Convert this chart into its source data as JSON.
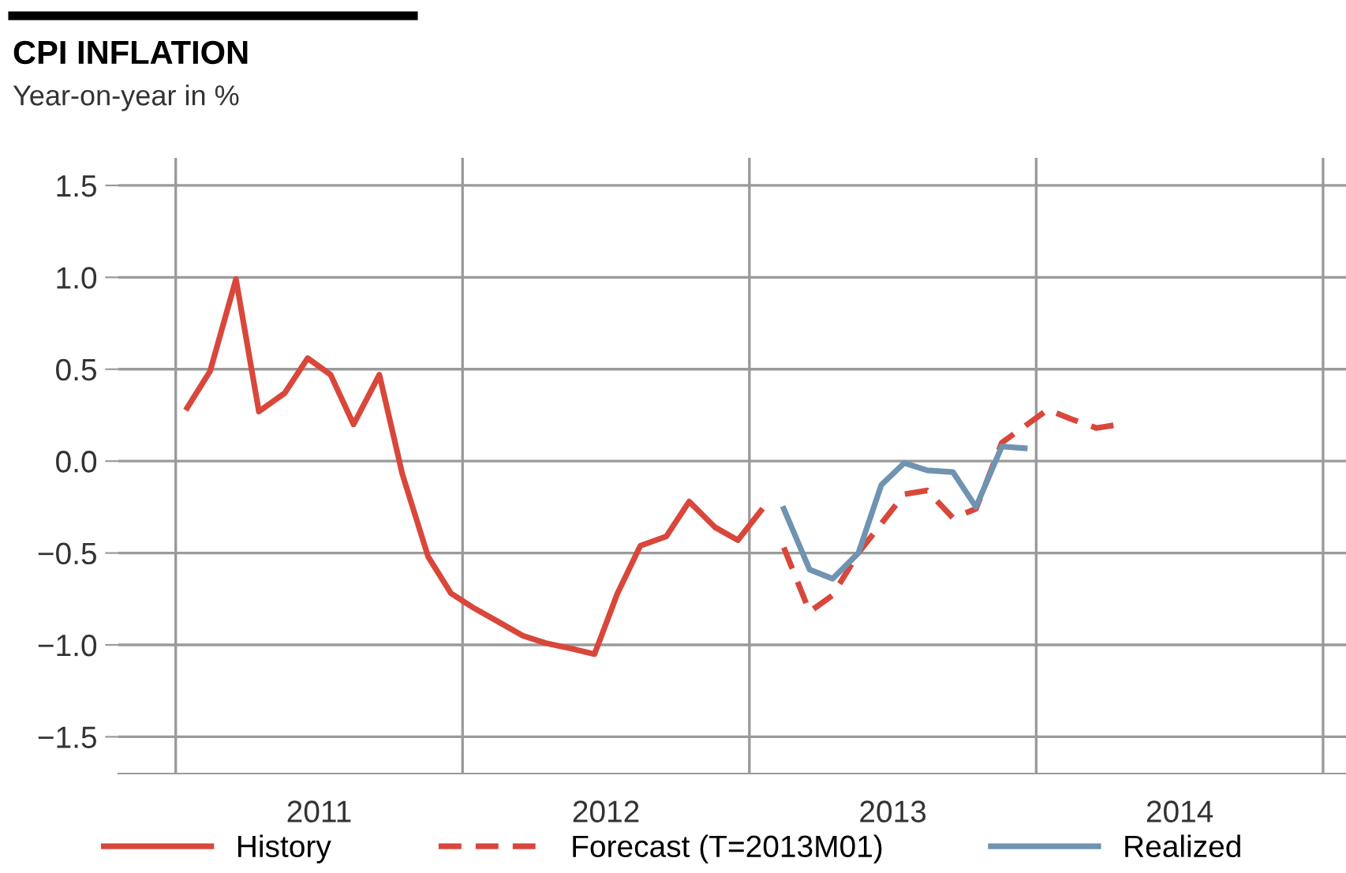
{
  "chart_data": {
    "type": "line",
    "title": "CPI INFLATION",
    "subtitle": "Year-on-year in %",
    "xlim": [
      2010.8,
      2015.08
    ],
    "ylim": [
      -1.7,
      1.65
    ],
    "xticks": [
      {
        "value": 2011,
        "label": null
      },
      {
        "value": 2011.5,
        "label": "2011"
      },
      {
        "value": 2012,
        "label": null
      },
      {
        "value": 2012.5,
        "label": "2012"
      },
      {
        "value": 2013,
        "label": null
      },
      {
        "value": 2013.5,
        "label": "2013"
      },
      {
        "value": 2014,
        "label": null
      },
      {
        "value": 2014.5,
        "label": "2014"
      },
      {
        "value": 2015,
        "label": null
      }
    ],
    "yticks": [
      {
        "value": 1.5,
        "label": "1.5"
      },
      {
        "value": 1.0,
        "label": "1.0"
      },
      {
        "value": 0.5,
        "label": "0.5"
      },
      {
        "value": 0.0,
        "label": "0.0"
      },
      {
        "value": -0.5,
        "label": "−0.5"
      },
      {
        "value": -1.0,
        "label": "−1.0"
      },
      {
        "value": -1.5,
        "label": "−1.5"
      }
    ],
    "grid": "y",
    "legend": "bottom",
    "ref_lines": [
      {
        "axis": "x",
        "value": 2011,
        "color": "#9a9a9a"
      },
      {
        "axis": "x",
        "value": 2012,
        "color": "#9a9a9a"
      },
      {
        "axis": "x",
        "value": 2013,
        "color": "#9a9a9a"
      },
      {
        "axis": "x",
        "value": 2014,
        "color": "#9a9a9a"
      },
      {
        "axis": "x",
        "value": 2015,
        "color": "#9a9a9a"
      }
    ],
    "series": [
      {
        "name": "History",
        "color": "#d9473b",
        "line_style": "solid",
        "x": [
          2011.04,
          2011.12,
          2011.21,
          2011.29,
          2011.38,
          2011.46,
          2011.54,
          2011.62,
          2011.71,
          2011.79,
          2011.88,
          2011.96,
          2012.04,
          2012.12,
          2012.21,
          2012.29,
          2012.38,
          2012.46,
          2012.54,
          2012.62,
          2012.71,
          2012.79,
          2012.88,
          2012.96,
          2013.04
        ],
        "values": [
          0.29,
          0.49,
          0.99,
          0.27,
          0.37,
          0.56,
          0.47,
          0.2,
          0.47,
          -0.07,
          -0.52,
          -0.72,
          -0.8,
          -0.87,
          -0.95,
          -0.99,
          -1.02,
          -1.05,
          -0.72,
          -0.46,
          -0.41,
          -0.22,
          -0.36,
          -0.43,
          -0.27
        ]
      },
      {
        "name": "Forecast (T=2013M01)",
        "color": "#d9473b",
        "line_style": "dashed",
        "x": [
          2013.12,
          2013.21,
          2013.29,
          2013.38,
          2013.46,
          2013.54,
          2013.62,
          2013.71,
          2013.79,
          2013.88,
          2013.96,
          2014.04,
          2014.12,
          2014.21,
          2014.29
        ],
        "values": [
          -0.47,
          -0.82,
          -0.73,
          -0.5,
          -0.34,
          -0.18,
          -0.16,
          -0.31,
          -0.26,
          0.1,
          0.19,
          0.28,
          0.23,
          0.18,
          0.2
        ]
      },
      {
        "name": "Realized",
        "color": "#6f93b0",
        "line_style": "solid",
        "x": [
          2013.12,
          2013.21,
          2013.29,
          2013.38,
          2013.46,
          2013.54,
          2013.62,
          2013.71,
          2013.79,
          2013.88,
          2013.96
        ],
        "values": [
          -0.26,
          -0.59,
          -0.64,
          -0.5,
          -0.13,
          -0.01,
          -0.05,
          -0.06,
          -0.25,
          0.08,
          0.07
        ]
      }
    ]
  }
}
